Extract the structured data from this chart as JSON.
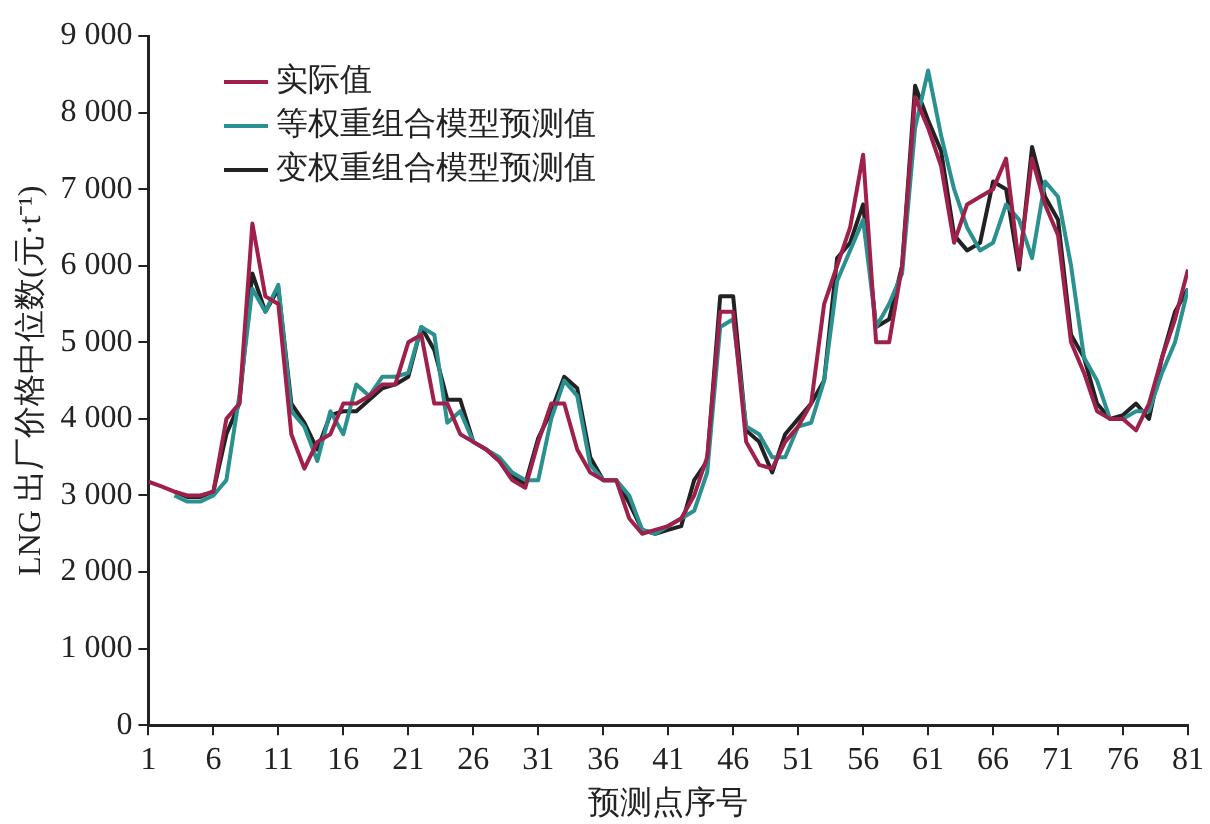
{
  "chart_data": {
    "type": "line",
    "xlabel": "预测点序号",
    "ylabel": "LNG 出厂价格中位数(元·t⁻¹)",
    "x": [
      1,
      2,
      3,
      4,
      5,
      6,
      7,
      8,
      9,
      10,
      11,
      12,
      13,
      14,
      15,
      16,
      17,
      18,
      19,
      20,
      21,
      22,
      23,
      24,
      25,
      26,
      27,
      28,
      29,
      30,
      31,
      32,
      33,
      34,
      35,
      36,
      37,
      38,
      39,
      40,
      41,
      42,
      43,
      44,
      45,
      46,
      47,
      48,
      49,
      50,
      51,
      52,
      53,
      54,
      55,
      56,
      57,
      58,
      59,
      60,
      61,
      62,
      63,
      64,
      65,
      66,
      67,
      68,
      69,
      70,
      71,
      72,
      73,
      74,
      75,
      76,
      77,
      78,
      79,
      80,
      81
    ],
    "xlim": [
      1,
      81
    ],
    "xticks": [
      1,
      6,
      11,
      16,
      21,
      26,
      31,
      36,
      41,
      46,
      51,
      56,
      61,
      66,
      71,
      76,
      81
    ],
    "ylim": [
      0,
      9000
    ],
    "yticks": [
      {
        "value": 0,
        "label": "0"
      },
      {
        "value": 1000,
        "label": "1 000"
      },
      {
        "value": 2000,
        "label": "2 000"
      },
      {
        "value": 3000,
        "label": "3 000"
      },
      {
        "value": 4000,
        "label": "4 000"
      },
      {
        "value": 5000,
        "label": "5 000"
      },
      {
        "value": 6000,
        "label": "6 000"
      },
      {
        "value": 7000,
        "label": "7 000"
      },
      {
        "value": 8000,
        "label": "8 000"
      },
      {
        "value": 9000,
        "label": "9 000"
      }
    ],
    "grid": false,
    "legend": "top left",
    "marker": "none",
    "line_style": "solid",
    "series": [
      {
        "name": "实际值",
        "color": "#a0204c",
        "values": [
          3180,
          3120,
          3050,
          3000,
          3000,
          3050,
          4000,
          4200,
          6550,
          5600,
          5500,
          3800,
          3350,
          3700,
          3800,
          4200,
          4200,
          4300,
          4450,
          4450,
          5000,
          5100,
          4200,
          4200,
          3800,
          3700,
          3600,
          3450,
          3200,
          3100,
          3700,
          4200,
          4200,
          3600,
          3300,
          3200,
          3200,
          2700,
          2500,
          2550,
          2600,
          2700,
          3000,
          3500,
          5400,
          5400,
          3700,
          3400,
          3350,
          3700,
          3900,
          4200,
          5500,
          6000,
          6500,
          7450,
          5000,
          5000,
          6000,
          8200,
          7800,
          7300,
          6300,
          6800,
          6900,
          7000,
          7400,
          6000,
          7400,
          6800,
          6400,
          5000,
          4600,
          4100,
          4000,
          4000,
          3850,
          4200,
          4800,
          5300,
          5950
        ]
      },
      {
        "name": "等权重组合模型预测值",
        "color": "#2a9090",
        "values": [
          null,
          null,
          3000,
          2920,
          2920,
          3000,
          3200,
          4300,
          5700,
          5400,
          5750,
          4100,
          3900,
          3450,
          4100,
          3800,
          4450,
          4300,
          4550,
          4550,
          4600,
          5200,
          5100,
          3950,
          4100,
          3700,
          3600,
          3500,
          3300,
          3200,
          3200,
          4000,
          4500,
          4300,
          3400,
          3200,
          3200,
          3000,
          2550,
          2500,
          2600,
          2700,
          2800,
          3300,
          5200,
          5300,
          3900,
          3800,
          3500,
          3500,
          3900,
          3950,
          4500,
          5800,
          6200,
          6600,
          5200,
          5500,
          5900,
          7800,
          8550,
          7700,
          7000,
          6500,
          6200,
          6300,
          6800,
          6600,
          6100,
          7100,
          6900,
          6000,
          4800,
          4500,
          4000,
          4000,
          4100,
          4100,
          4600,
          5000,
          5700
        ]
      },
      {
        "name": "变权重组合模型预测值",
        "color": "#222222",
        "values": [
          null,
          null,
          3050,
          2980,
          2980,
          3050,
          3800,
          4200,
          5900,
          5400,
          5700,
          4200,
          3950,
          3600,
          4050,
          4100,
          4100,
          4250,
          4400,
          4450,
          4550,
          5200,
          4900,
          4250,
          4250,
          3700,
          3600,
          3450,
          3250,
          3150,
          3750,
          4100,
          4550,
          4400,
          3500,
          3200,
          3200,
          2900,
          2550,
          2500,
          2550,
          2600,
          3200,
          3450,
          5600,
          5600,
          3850,
          3700,
          3300,
          3800,
          4000,
          4200,
          4500,
          6100,
          6300,
          6800,
          5200,
          5300,
          6000,
          8350,
          7900,
          7500,
          6400,
          6200,
          6300,
          7100,
          7000,
          5950,
          7550,
          6900,
          6600,
          5100,
          4800,
          4200,
          4000,
          4050,
          4200,
          4000,
          4800,
          5400,
          5700
        ]
      }
    ]
  }
}
